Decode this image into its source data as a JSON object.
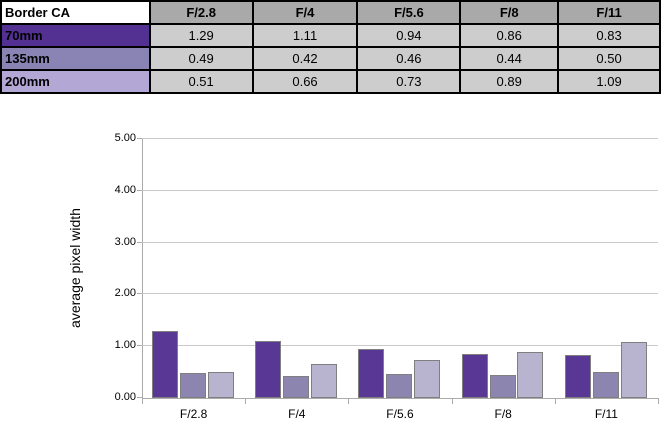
{
  "table": {
    "corner_label": "Border CA",
    "column_headers": [
      "F/2.8",
      "F/4",
      "F/5.6",
      "F/8",
      "F/11"
    ],
    "rows": [
      {
        "label": "70mm",
        "color": "#523192",
        "values": [
          "1.29",
          "1.11",
          "0.94",
          "0.86",
          "0.83"
        ]
      },
      {
        "label": "135mm",
        "color": "#8A84B5",
        "values": [
          "0.49",
          "0.42",
          "0.46",
          "0.44",
          "0.50"
        ]
      },
      {
        "label": "200mm",
        "color": "#B2A7D5",
        "values": [
          "0.51",
          "0.66",
          "0.73",
          "0.89",
          "1.09"
        ]
      }
    ],
    "header_bg": "#A9A9A9",
    "cell_bg": "#CDCDCD"
  },
  "chart_data": {
    "type": "bar",
    "categories": [
      "F/2.8",
      "F/4",
      "F/5.6",
      "F/8",
      "F/11"
    ],
    "series": [
      {
        "name": "70mm",
        "color": "#583795",
        "values": [
          1.29,
          1.11,
          0.94,
          0.86,
          0.83
        ]
      },
      {
        "name": "135mm",
        "color": "#8C85B0",
        "values": [
          0.49,
          0.42,
          0.46,
          0.44,
          0.5
        ]
      },
      {
        "name": "200mm",
        "color": "#B8B4CF",
        "values": [
          0.51,
          0.66,
          0.73,
          0.89,
          1.09
        ]
      }
    ],
    "ylabel": "average pixel width",
    "ylim": [
      0,
      5
    ],
    "ytick_step": 1,
    "ytick_labels": [
      "0.00",
      "1.00",
      "2.00",
      "3.00",
      "4.00",
      "5.00"
    ],
    "grid": true,
    "legend": false
  }
}
